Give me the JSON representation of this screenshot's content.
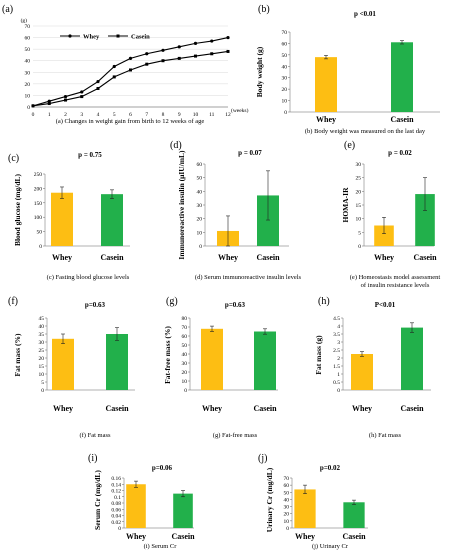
{
  "colors": {
    "whey": "#FDBE13",
    "casein": "#22B04B",
    "line": "#000000",
    "axis": "#888888"
  },
  "chart_data": [
    {
      "type": "line",
      "letter": "(a)",
      "x": [
        0,
        1,
        2,
        3,
        4,
        5,
        6,
        7,
        8,
        9,
        10,
        11,
        12
      ],
      "xlabel": "(weeks)",
      "ylabel": "(g)",
      "ylim": [
        0,
        70
      ],
      "yticks": [
        0,
        10,
        20,
        30,
        40,
        50,
        60,
        70
      ],
      "caption": "(a) Changes in weight gain from birth to 12 weeks of age",
      "series": [
        {
          "name": "Whey",
          "marker": "circle",
          "values": [
            1,
            5,
            9,
            13,
            22,
            35,
            42,
            46,
            49,
            52,
            55,
            57,
            60
          ]
        },
        {
          "name": "Casein",
          "marker": "square",
          "values": [
            1,
            3,
            6,
            9,
            16,
            26,
            32,
            37,
            40,
            42,
            44,
            46,
            48
          ]
        }
      ]
    },
    {
      "type": "bar",
      "letter": "(b)",
      "ptext": "p <0.01",
      "ylabel": "Body weight (g)",
      "ylim": [
        0,
        70
      ],
      "yticks": [
        "0",
        "10",
        "20",
        "30",
        "40",
        "50",
        "60",
        "70"
      ],
      "categories": [
        "Whey",
        "Casein"
      ],
      "values": [
        48,
        61
      ],
      "errors": [
        1.5,
        1.5
      ],
      "caption": [
        "(b) Body weight was measured on the last day"
      ]
    },
    {
      "type": "bar",
      "letter": "(c)",
      "ptext": "p = 0.75",
      "ylabel": "Blood glucose (mg/dL)",
      "ylim": [
        0,
        250
      ],
      "yticks": [
        "0",
        "50",
        "100",
        "150",
        "200",
        "250"
      ],
      "categories": [
        "Whey",
        "Casein"
      ],
      "values": [
        185,
        180
      ],
      "errors": [
        20,
        15
      ],
      "caption": [
        "(c) Fasting blood glucose levels"
      ]
    },
    {
      "type": "bar",
      "letter": "(d)",
      "ptext": "p = 0.07",
      "ylabel": "Immunoreactive insulin (μIU/mL)",
      "ylim": [
        0,
        60
      ],
      "yticks": [
        "0",
        "10",
        "20",
        "30",
        "40",
        "50",
        "60"
      ],
      "categories": [
        "Whey",
        "Casein"
      ],
      "values": [
        11,
        37
      ],
      "errors": [
        11,
        18
      ],
      "caption": [
        "(d) Serum immunoreactive insulin levels"
      ]
    },
    {
      "type": "bar",
      "letter": "(e)",
      "ptext": "p = 0.02",
      "ylabel": "HOMA-IR",
      "ylim": [
        0,
        30
      ],
      "yticks": [
        "0",
        "5",
        "10",
        "15",
        "20",
        "25",
        "30"
      ],
      "categories": [
        "Whey",
        "Casein"
      ],
      "values": [
        7.5,
        19
      ],
      "errors": [
        3,
        6
      ],
      "caption": [
        "(e) Homeostasis model assessment",
        "of insulin resistance levels"
      ]
    },
    {
      "type": "bar",
      "letter": "(f)",
      "ptext": "p=0.63",
      "ylabel": "Fat mass (%)",
      "ylim": [
        0,
        45
      ],
      "yticks": [
        "0",
        "5",
        "10",
        "15",
        "20",
        "25",
        "30",
        "35",
        "40",
        "45"
      ],
      "categories": [
        "Whey",
        "Casein"
      ],
      "values": [
        32,
        35
      ],
      "errors": [
        3,
        4
      ],
      "caption": [
        "(f) Fat mass"
      ]
    },
    {
      "type": "bar",
      "letter": "(g)",
      "ptext": "p=0.63",
      "ylabel": "Fat-free mass (%)",
      "ylim": [
        0,
        80
      ],
      "yticks": [
        "0",
        "10",
        "20",
        "30",
        "40",
        "50",
        "60",
        "70",
        "80"
      ],
      "categories": [
        "Whey",
        "Casein"
      ],
      "values": [
        68,
        65
      ],
      "errors": [
        3,
        3
      ],
      "caption": [
        "(g) Fat-free mass"
      ]
    },
    {
      "type": "bar",
      "letter": "(h)",
      "ptext": "P<0.01",
      "ylabel": "Fat mass (g)",
      "ylim": [
        0,
        4.5
      ],
      "yticks": [
        "0",
        "0.5",
        "1",
        "1.5",
        "2",
        "2.5",
        "3",
        "3.5",
        "4",
        "4.5"
      ],
      "categories": [
        "Whey",
        "Casein"
      ],
      "values": [
        2.25,
        3.9
      ],
      "errors": [
        0.15,
        0.3
      ],
      "caption": [
        "(h) Fat mass"
      ]
    },
    {
      "type": "bar",
      "letter": "(i)",
      "ptext": "p=0.06",
      "ylabel": "Serum Cr (mg/dL)",
      "ylim": [
        0,
        0.16
      ],
      "yticks": [
        "0",
        "0.02",
        "0.04",
        "0.06",
        "0.08",
        "0.1",
        "0.12",
        "0.14",
        "0.16"
      ],
      "categories": [
        "Whey",
        "Casein"
      ],
      "values": [
        0.14,
        0.11
      ],
      "errors": [
        0.01,
        0.01
      ],
      "caption": [
        "(i) Serum Cr"
      ]
    },
    {
      "type": "bar",
      "letter": "(j)",
      "ptext": "p=0.02",
      "ylabel": "Urinary Cr (mg/dL)",
      "ylim": [
        0,
        70
      ],
      "yticks": [
        "0",
        "10",
        "20",
        "30",
        "40",
        "50",
        "60",
        "70"
      ],
      "categories": [
        "Whey",
        "Casein"
      ],
      "values": [
        54,
        36
      ],
      "errors": [
        6,
        3
      ],
      "caption": [
        "(j) Urinary Cr"
      ]
    }
  ]
}
